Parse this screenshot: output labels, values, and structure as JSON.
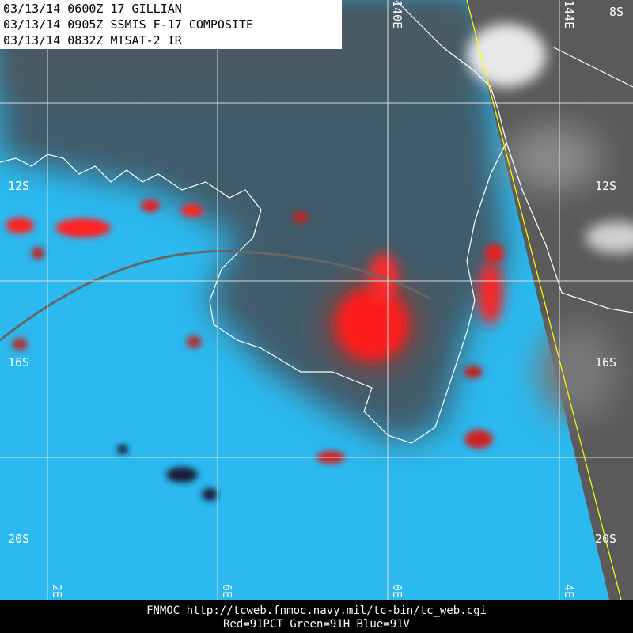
{
  "header": {
    "lines": [
      "03/13/14 0600Z  17 GILLIAN",
      "03/13/14 0905Z  SSMIS F-17 COMPOSITE",
      "03/13/14 0832Z  MTSAT-2 IR"
    ]
  },
  "lat_labels": {
    "left": [
      "12S",
      "16S",
      "20S"
    ],
    "right": [
      "12S",
      "16S",
      "20S"
    ],
    "top_right": "8S"
  },
  "lon_labels": {
    "top": [
      "140E",
      "144E"
    ],
    "bottom": [
      "2E",
      "6E",
      "0E",
      "4E"
    ]
  },
  "footer": {
    "lines": [
      "FNMOC  http://tcweb.fnmoc.navy.mil/tc-bin/tc_web.cgi",
      "Red=91PCT  Green=91H  Blue=91V"
    ]
  }
}
